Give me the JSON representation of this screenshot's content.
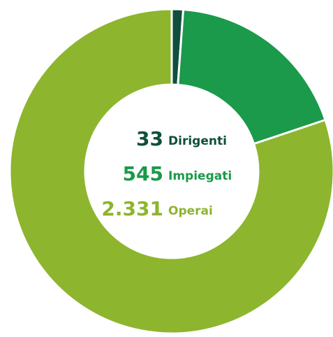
{
  "chart_data": {
    "type": "pie",
    "categories": [
      "Dirigenti",
      "Impiegati",
      "Operai"
    ],
    "values": [
      33,
      545,
      2331
    ],
    "value_labels": [
      "33",
      "545",
      "2.331"
    ],
    "colors": [
      "#0f4f3c",
      "#1a9a4a",
      "#8db52e"
    ]
  }
}
